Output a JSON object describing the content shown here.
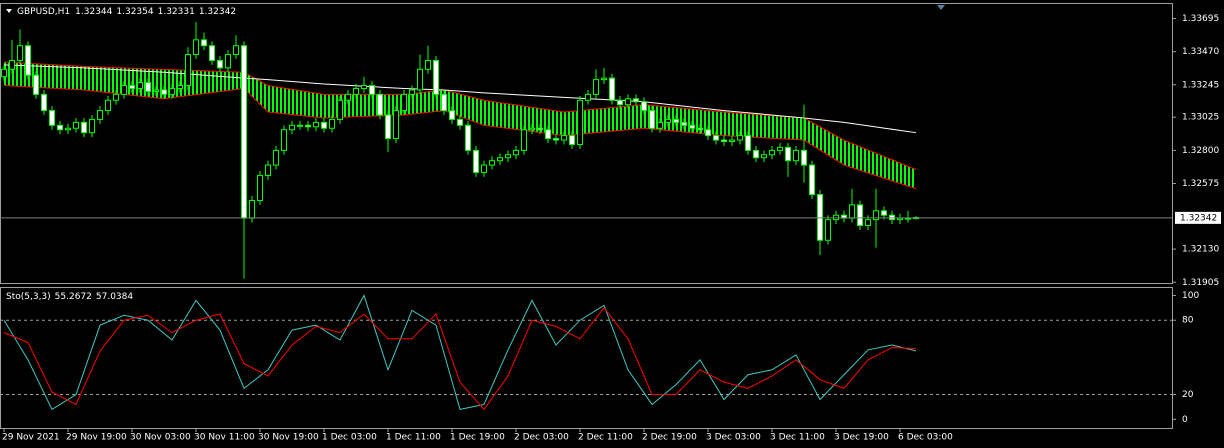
{
  "chart_data": [
    {
      "type": "candlestick",
      "title": "GBPUSD,H1",
      "open": [
        1.333,
        1.3335,
        1.3341,
        1.3351,
        1.3331,
        1.3318,
        1.3307,
        1.3297,
        1.3294,
        1.3295,
        1.3299,
        1.3292,
        1.3301,
        1.3307,
        1.3314,
        1.3318,
        1.3324,
        1.3322,
        1.3326,
        1.332,
        1.3321,
        1.3318,
        1.3322,
        1.3324,
        1.3345,
        1.3355,
        1.3351,
        1.3341,
        1.3336,
        1.3345,
        1.3351,
        1.3234,
        1.3246,
        1.3263,
        1.327,
        1.328,
        1.3294,
        1.3297,
        1.3297,
        1.3296,
        1.3299,
        1.3295,
        1.3301,
        1.3314,
        1.3318,
        1.3322,
        1.3324,
        1.3318,
        1.3304,
        1.3288,
        1.3307,
        1.3318,
        1.3321,
        1.3335,
        1.3341,
        1.3318,
        1.3307,
        1.3301,
        1.3297,
        1.328,
        1.3265,
        1.327,
        1.3273,
        1.3275,
        1.3277,
        1.328,
        1.3294,
        1.3295,
        1.3294,
        1.3288,
        1.3287,
        1.329,
        1.3284,
        1.3314,
        1.3318,
        1.3328,
        1.3329,
        1.3314,
        1.3311,
        1.3315,
        1.3313,
        1.3307,
        1.3295,
        1.3299,
        1.3301,
        1.3299,
        1.3297,
        1.3295,
        1.3294,
        1.329,
        1.3287,
        1.3286,
        1.3287,
        1.329,
        1.328,
        1.3275,
        1.3277,
        1.328,
        1.3282,
        1.3273,
        1.328,
        1.327,
        1.325,
        1.3219,
        1.3233,
        1.3236,
        1.3234,
        1.3243,
        1.3229,
        1.3233,
        1.3239,
        1.3236,
        1.3233,
        1.3234,
        1.32344
      ],
      "high": [
        1.3338,
        1.3355,
        1.3362,
        1.3354,
        1.3334,
        1.3321,
        1.331,
        1.33,
        1.3298,
        1.3302,
        1.3302,
        1.3304,
        1.331,
        1.3317,
        1.3321,
        1.3327,
        1.3327,
        1.3329,
        1.3329,
        1.3324,
        1.3324,
        1.3325,
        1.3327,
        1.335,
        1.3367,
        1.336,
        1.3354,
        1.3344,
        1.3348,
        1.3358,
        1.3354,
        1.3249,
        1.3266,
        1.3273,
        1.3283,
        1.3297,
        1.33,
        1.33,
        1.33,
        1.3302,
        1.3302,
        1.3304,
        1.3317,
        1.3321,
        1.3325,
        1.333,
        1.3327,
        1.3321,
        1.3307,
        1.331,
        1.3321,
        1.3324,
        1.3345,
        1.3351,
        1.3344,
        1.3321,
        1.331,
        1.3304,
        1.33,
        1.3283,
        1.3273,
        1.3276,
        1.3278,
        1.328,
        1.3283,
        1.3297,
        1.3298,
        1.3298,
        1.3297,
        1.3291,
        1.3293,
        1.3293,
        1.3317,
        1.3321,
        1.3335,
        1.3336,
        1.3332,
        1.3317,
        1.3318,
        1.3318,
        1.3316,
        1.331,
        1.3302,
        1.3304,
        1.3304,
        1.3302,
        1.33,
        1.3298,
        1.3297,
        1.3293,
        1.329,
        1.329,
        1.3293,
        1.3293,
        1.3283,
        1.328,
        1.3283,
        1.3285,
        1.3285,
        1.3283,
        1.3311,
        1.3273,
        1.3253,
        1.3236,
        1.3239,
        1.3239,
        1.3254,
        1.3246,
        1.3236,
        1.3254,
        1.3242,
        1.3239,
        1.3237,
        1.3239,
        1.32354
      ],
      "low": [
        1.3327,
        1.3332,
        1.3338,
        1.3328,
        1.3315,
        1.3304,
        1.3294,
        1.3291,
        1.3291,
        1.3292,
        1.3289,
        1.3289,
        1.3298,
        1.3304,
        1.3311,
        1.3315,
        1.3319,
        1.3319,
        1.3317,
        1.3317,
        1.3315,
        1.3315,
        1.3319,
        1.3321,
        1.3342,
        1.3348,
        1.3338,
        1.3333,
        1.3333,
        1.3342,
        1.3193,
        1.3231,
        1.3243,
        1.326,
        1.3267,
        1.3277,
        1.3291,
        1.3294,
        1.3293,
        1.3293,
        1.3292,
        1.3292,
        1.3298,
        1.3311,
        1.3315,
        1.3319,
        1.3315,
        1.3301,
        1.3279,
        1.3285,
        1.3304,
        1.3315,
        1.3318,
        1.3332,
        1.3315,
        1.3304,
        1.3298,
        1.3294,
        1.3277,
        1.3262,
        1.3262,
        1.3267,
        1.327,
        1.3272,
        1.3274,
        1.3277,
        1.3291,
        1.3291,
        1.3285,
        1.3284,
        1.3284,
        1.3281,
        1.3281,
        1.3311,
        1.3315,
        1.3325,
        1.3311,
        1.3308,
        1.3308,
        1.331,
        1.3304,
        1.3292,
        1.3292,
        1.3296,
        1.3296,
        1.3294,
        1.3292,
        1.3291,
        1.3287,
        1.3284,
        1.3283,
        1.3283,
        1.3284,
        1.3277,
        1.3272,
        1.3272,
        1.3274,
        1.3277,
        1.3262,
        1.327,
        1.3258,
        1.3247,
        1.3209,
        1.3216,
        1.323,
        1.3231,
        1.3231,
        1.3226,
        1.3226,
        1.3214,
        1.3233,
        1.323,
        1.323,
        1.3231,
        1.32331
      ],
      "close": [
        1.3335,
        1.3341,
        1.3351,
        1.3331,
        1.3318,
        1.3307,
        1.3297,
        1.3294,
        1.3295,
        1.3299,
        1.3292,
        1.3301,
        1.3307,
        1.3314,
        1.3318,
        1.3324,
        1.3322,
        1.3326,
        1.332,
        1.3321,
        1.3318,
        1.3322,
        1.3324,
        1.3345,
        1.3355,
        1.3351,
        1.3341,
        1.3336,
        1.3345,
        1.3351,
        1.3234,
        1.3246,
        1.3263,
        1.327,
        1.328,
        1.3294,
        1.3297,
        1.3297,
        1.3296,
        1.3299,
        1.3295,
        1.3301,
        1.3314,
        1.3318,
        1.3322,
        1.3324,
        1.3318,
        1.3304,
        1.3288,
        1.3307,
        1.3318,
        1.3321,
        1.3335,
        1.3341,
        1.3318,
        1.3307,
        1.3301,
        1.3297,
        1.328,
        1.3265,
        1.327,
        1.3273,
        1.3275,
        1.3277,
        1.328,
        1.3294,
        1.3295,
        1.3294,
        1.3288,
        1.3287,
        1.329,
        1.3284,
        1.3314,
        1.3318,
        1.3328,
        1.3329,
        1.3314,
        1.3311,
        1.3315,
        1.3313,
        1.3307,
        1.3295,
        1.3299,
        1.3301,
        1.3299,
        1.3297,
        1.3295,
        1.3294,
        1.329,
        1.3287,
        1.3286,
        1.3287,
        1.329,
        1.328,
        1.3275,
        1.3277,
        1.328,
        1.3282,
        1.3273,
        1.328,
        1.327,
        1.325,
        1.3219,
        1.3233,
        1.3236,
        1.3234,
        1.3243,
        1.3229,
        1.3233,
        1.3239,
        1.3236,
        1.3233,
        1.3234,
        1.3234,
        1.32342
      ],
      "wick_color": "#00ff00",
      "up_color": "#000000",
      "down_color": "#ffffff",
      "band": {
        "x": [
          0,
          10,
          20,
          30,
          33,
          40,
          50,
          55,
          60,
          70,
          80,
          90,
          100,
          105,
          114
        ],
        "upper": [
          1.334,
          1.3337,
          1.3335,
          1.3333,
          1.3324,
          1.3318,
          1.3318,
          1.3321,
          1.3314,
          1.3306,
          1.3311,
          1.3306,
          1.3302,
          1.3287,
          1.3267
        ],
        "lower": [
          1.3324,
          1.3321,
          1.3315,
          1.3322,
          1.3306,
          1.3302,
          1.3304,
          1.3307,
          1.3297,
          1.329,
          1.3295,
          1.329,
          1.3287,
          1.327,
          1.3254
        ],
        "color": "#ff0000",
        "fill": "#00ff00"
      },
      "ma": {
        "x": [
          0,
          10,
          20,
          30,
          33,
          40,
          50,
          55,
          60,
          70,
          80,
          90,
          100,
          105,
          114
        ],
        "values": [
          1.3338,
          1.3336,
          1.3333,
          1.3329,
          1.3328,
          1.3325,
          1.3322,
          1.3321,
          1.3319,
          1.3316,
          1.3313,
          1.3307,
          1.3302,
          1.3299,
          1.3292
        ],
        "color": "#ffffff"
      },
      "xlim": [
        -0.5,
        146
      ],
      "xticks": [
        {
          "value": 0,
          "label": "29 Nov 2021"
        },
        {
          "value": 8,
          "label": "29 Nov 19:00"
        },
        {
          "value": 16,
          "label": "30 Nov 03:00"
        },
        {
          "value": 24,
          "label": "30 Nov 11:00"
        },
        {
          "value": 32,
          "label": "30 Nov 19:00"
        },
        {
          "value": 40,
          "label": "1 Dec 03:00"
        },
        {
          "value": 48,
          "label": "1 Dec 11:00"
        },
        {
          "value": 56,
          "label": "1 Dec 19:00"
        },
        {
          "value": 64,
          "label": "2 Dec 03:00"
        },
        {
          "value": 72,
          "label": "2 Dec 11:00"
        },
        {
          "value": 80,
          "label": "2 Dec 19:00"
        },
        {
          "value": 88,
          "label": "3 Dec 03:00"
        },
        {
          "value": 96,
          "label": "3 Dec 11:00"
        },
        {
          "value": 104,
          "label": "3 Dec 19:00"
        },
        {
          "value": 112,
          "label": "6 Dec 03:00"
        }
      ],
      "ylim": [
        1.319,
        1.338
      ],
      "yticks": [
        1.31905,
        {
          "value": 1.3213,
          "label": "1.32130"
        },
        1.32575,
        {
          "value": 1.328,
          "label": "1.32800"
        },
        1.33025,
        1.33245,
        {
          "value": 1.3347,
          "label": "1.33470"
        },
        1.33695
      ],
      "price_line_color": "#808080"
    },
    {
      "type": "line",
      "title": "Sto(5,3,3)",
      "x": [
        0,
        3,
        6,
        9,
        12,
        15,
        18,
        21,
        24,
        27,
        30,
        33,
        36,
        39,
        42,
        45,
        48,
        51,
        54,
        57,
        60,
        63,
        66,
        69,
        72,
        75,
        78,
        81,
        84,
        87,
        90,
        93,
        96,
        99,
        102,
        105,
        108,
        111,
        114
      ],
      "series": [
        {
          "color": "#40c8c0",
          "values": [
            80,
            48,
            8,
            20,
            76,
            84,
            80,
            64,
            96,
            72,
            25,
            40,
            72,
            76,
            64,
            100,
            40,
            88,
            76,
            8,
            12,
            56,
            96,
            60,
            80,
            92,
            40,
            12,
            28,
            48,
            16,
            36,
            40,
            52,
            16,
            36,
            56,
            60,
            55.2672
          ]
        },
        {
          "color": "#ff0000",
          "values": [
            70,
            62,
            22,
            12,
            55,
            80,
            84,
            70,
            80,
            85,
            45,
            35,
            60,
            75,
            70,
            85,
            65,
            65,
            85,
            30,
            8,
            35,
            80,
            75,
            65,
            90,
            65,
            20,
            20,
            40,
            30,
            25,
            35,
            48,
            32,
            25,
            48,
            58,
            57.0384
          ]
        }
      ],
      "xlim": [
        -0.5,
        146
      ],
      "ylim": [
        -7,
        106
      ],
      "yticks": [
        0,
        20,
        80,
        100
      ],
      "levels": [
        20,
        80
      ]
    }
  ]
}
